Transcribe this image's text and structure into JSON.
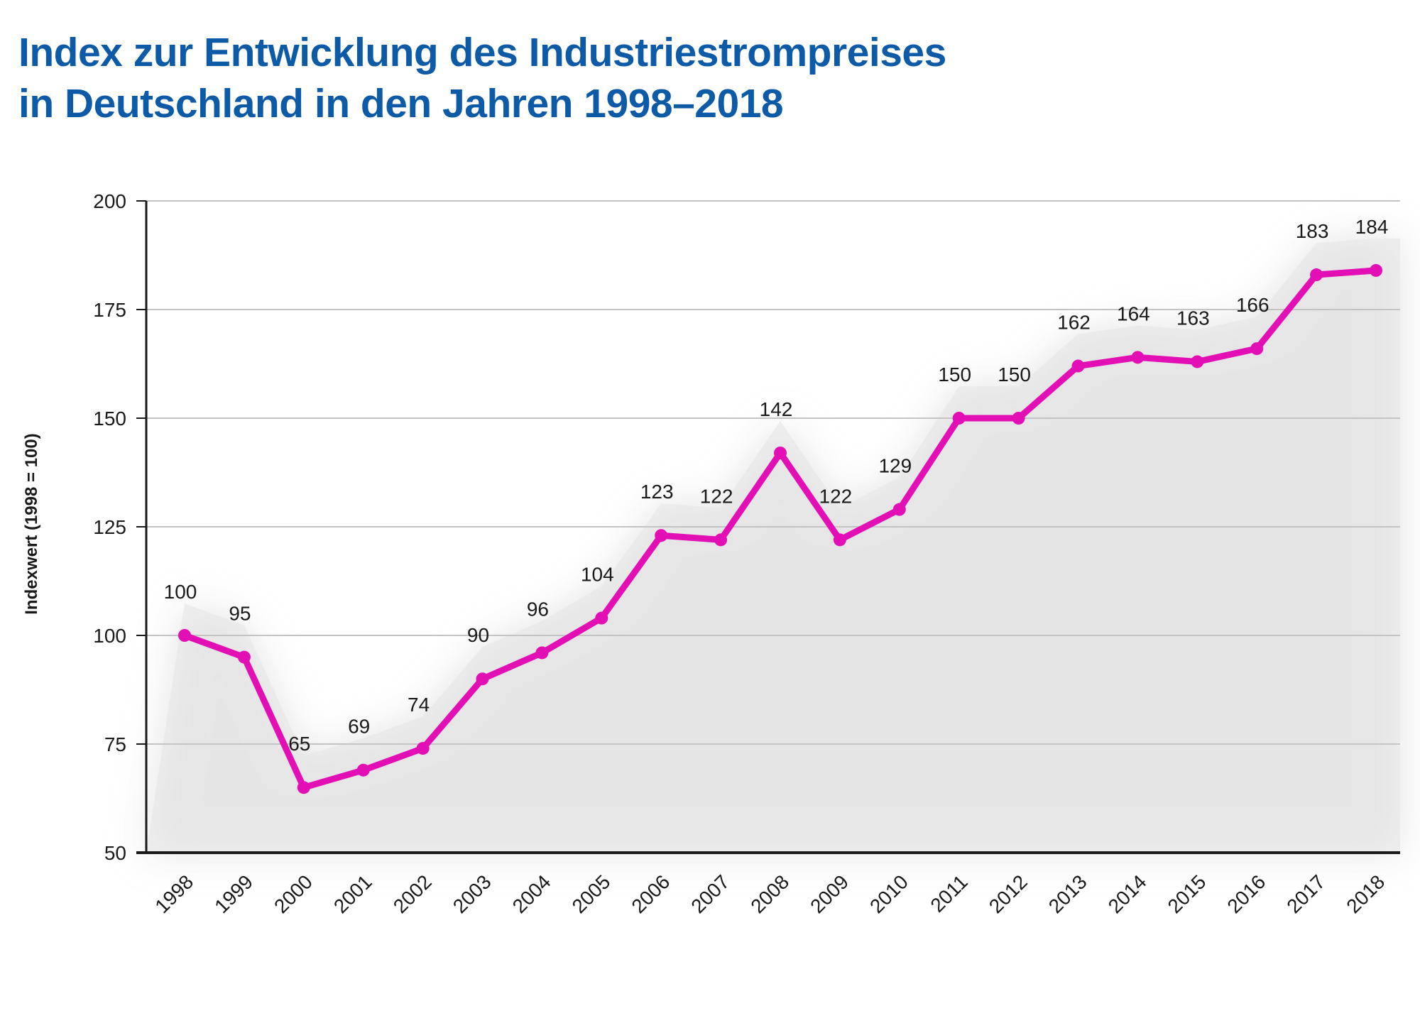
{
  "title": {
    "line1": "Index zur Entwicklung des Industriestrompreises",
    "line2": "in Deutschland in den Jahren 1998–2018"
  },
  "chart_data": {
    "type": "line",
    "title": "Index zur Entwicklung des Industriestrompreises in Deutschland in den Jahren 1998–2018",
    "xlabel": "",
    "ylabel": "Indexwert (1998 = 100)",
    "categories": [
      "1998",
      "1999",
      "2000",
      "2001",
      "2002",
      "2003",
      "2004",
      "2005",
      "2006",
      "2007",
      "2008",
      "2009",
      "2010",
      "2011",
      "2012",
      "2013",
      "2014",
      "2015",
      "2016",
      "2017",
      "2018"
    ],
    "values": [
      100,
      95,
      65,
      69,
      74,
      90,
      96,
      104,
      123,
      122,
      142,
      122,
      129,
      150,
      150,
      162,
      164,
      163,
      166,
      183,
      184
    ],
    "data_labels": [
      "100",
      "95",
      "65",
      "69",
      "74",
      "90",
      "96",
      "104",
      "123",
      "122",
      "142",
      "122",
      "129",
      "150",
      "150",
      "162",
      "164",
      "163",
      "166",
      "183",
      "184"
    ],
    "ylim": [
      50,
      200
    ],
    "yticks": [
      50,
      75,
      100,
      125,
      150,
      175,
      200
    ],
    "grid": true,
    "line_color": "#e20fb4",
    "grid_color": "#c4c4c4",
    "title_color": "#0d5aa7"
  }
}
